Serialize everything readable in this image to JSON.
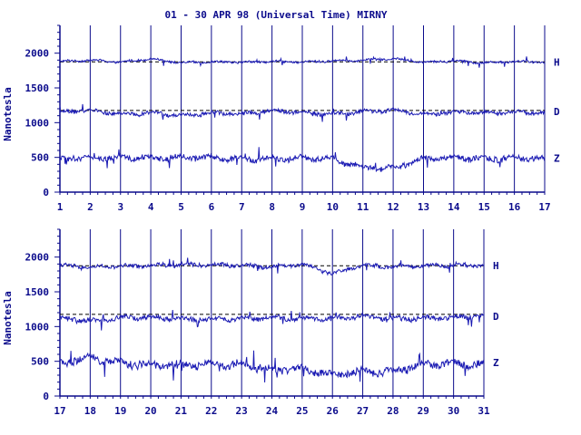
{
  "title": "01 - 30 APR 98 (Universal Time) MIRNY",
  "colors": {
    "ink": "#0b0b8c",
    "trace": "#1c1cb4",
    "background": "#ffffff"
  },
  "chart_data": [
    {
      "type": "line",
      "ylabel": "Nanotesla",
      "ylim": [
        0,
        2400
      ],
      "yticks": [
        "0",
        "500",
        "1000",
        "1500",
        "2000"
      ],
      "xlim": [
        1,
        17
      ],
      "xticks": [
        "1",
        "2",
        "3",
        "4",
        "5",
        "6",
        "7",
        "8",
        "9",
        "10",
        "11",
        "12",
        "13",
        "14",
        "15",
        "16",
        "17"
      ],
      "grid": "vertical lines at each day",
      "baselines": [
        1875,
        1175
      ],
      "series": [
        {
          "name": "H",
          "level": 1875,
          "x": [
            1,
            2,
            3,
            4,
            5,
            6,
            7,
            8,
            9,
            10,
            11,
            12,
            13,
            14,
            15,
            16,
            17
          ],
          "values": [
            1880,
            1900,
            1870,
            1920,
            1860,
            1875,
            1870,
            1880,
            1870,
            1890,
            1900,
            1920,
            1870,
            1890,
            1860,
            1880,
            1870
          ],
          "spread": 70
        },
        {
          "name": "D",
          "level": 1160,
          "x": [
            1,
            2,
            3,
            4,
            5,
            6,
            7,
            8,
            9,
            10,
            11,
            12,
            13,
            14,
            15,
            16,
            17
          ],
          "values": [
            1150,
            1180,
            1120,
            1140,
            1100,
            1140,
            1130,
            1170,
            1150,
            1120,
            1160,
            1180,
            1120,
            1150,
            1140,
            1150,
            1140
          ],
          "spread": 120
        },
        {
          "name": "Z",
          "level": 490,
          "x": [
            1,
            2,
            3,
            4,
            5,
            6,
            7,
            8,
            9,
            10,
            11,
            12,
            13,
            14,
            15,
            16,
            17
          ],
          "values": [
            480,
            490,
            500,
            490,
            500,
            500,
            470,
            480,
            490,
            480,
            350,
            350,
            480,
            500,
            480,
            490,
            480
          ],
          "spread": 180
        }
      ]
    },
    {
      "type": "line",
      "ylabel": "Nanotesla",
      "ylim": [
        0,
        2400
      ],
      "yticks": [
        "0",
        "500",
        "1000",
        "1500",
        "2000"
      ],
      "xlim": [
        17,
        31
      ],
      "xticks": [
        "17",
        "18",
        "19",
        "20",
        "21",
        "22",
        "23",
        "24",
        "25",
        "26",
        "27",
        "28",
        "29",
        "30",
        "31"
      ],
      "grid": "vertical lines at each day",
      "baselines": [
        1875,
        1175
      ],
      "series": [
        {
          "name": "H",
          "level": 1880,
          "x": [
            17,
            18,
            19,
            20,
            21,
            22,
            23,
            24,
            25,
            26,
            27,
            28,
            29,
            30,
            31
          ],
          "values": [
            1880,
            1850,
            1870,
            1880,
            1890,
            1890,
            1880,
            1860,
            1900,
            1760,
            1880,
            1860,
            1870,
            1880,
            1880
          ],
          "spread": 120
        },
        {
          "name": "D",
          "level": 1150,
          "x": [
            17,
            18,
            19,
            20,
            21,
            22,
            23,
            24,
            25,
            26,
            27,
            28,
            29,
            30,
            31
          ],
          "values": [
            1130,
            1080,
            1130,
            1130,
            1110,
            1100,
            1120,
            1130,
            1110,
            1120,
            1150,
            1110,
            1120,
            1130,
            1160
          ],
          "spread": 150
        },
        {
          "name": "Z",
          "level": 480,
          "x": [
            17,
            18,
            19,
            20,
            21,
            22,
            23,
            24,
            25,
            26,
            27,
            28,
            29,
            30,
            31
          ],
          "values": [
            470,
            560,
            480,
            450,
            440,
            460,
            450,
            380,
            400,
            300,
            360,
            350,
            460,
            470,
            440
          ],
          "spread": 250
        }
      ]
    }
  ]
}
